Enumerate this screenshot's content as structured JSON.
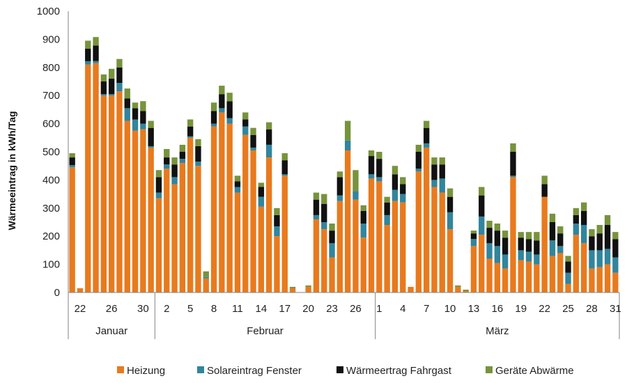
{
  "chart_data": {
    "type": "bar",
    "stacked": true,
    "title": "",
    "xlabel": "",
    "ylabel": "Wärmeeintrag in kWh/Tag",
    "ylim": [
      0,
      1000
    ],
    "yticks": [
      0,
      100,
      200,
      300,
      400,
      500,
      600,
      700,
      800,
      900,
      1000
    ],
    "grid": false,
    "legend_position": "bottom",
    "x_tick_labels": [
      {
        "index": 1,
        "label": "22"
      },
      {
        "index": 5,
        "label": "26"
      },
      {
        "index": 9,
        "label": "30"
      },
      {
        "index": 12,
        "label": "2"
      },
      {
        "index": 15,
        "label": "5"
      },
      {
        "index": 18,
        "label": "8"
      },
      {
        "index": 21,
        "label": "11"
      },
      {
        "index": 24,
        "label": "14"
      },
      {
        "index": 27,
        "label": "17"
      },
      {
        "index": 30,
        "label": "20"
      },
      {
        "index": 33,
        "label": "23"
      },
      {
        "index": 36,
        "label": "26"
      },
      {
        "index": 39,
        "label": "1"
      },
      {
        "index": 42,
        "label": "4"
      },
      {
        "index": 45,
        "label": "7"
      },
      {
        "index": 48,
        "label": "10"
      },
      {
        "index": 51,
        "label": "13"
      },
      {
        "index": 54,
        "label": "16"
      },
      {
        "index": 57,
        "label": "19"
      },
      {
        "index": 60,
        "label": "22"
      },
      {
        "index": 63,
        "label": "25"
      },
      {
        "index": 66,
        "label": "28"
      },
      {
        "index": 69,
        "label": "31"
      }
    ],
    "months": [
      {
        "label": "Januar",
        "start": 0,
        "end": 11
      },
      {
        "label": "Februar",
        "start": 11,
        "end": 39
      },
      {
        "label": "März",
        "start": 39,
        "end": 70
      }
    ],
    "series": [
      {
        "name": "Heizung",
        "color": "#E87A1E",
        "values": [
          445,
          15,
          810,
          815,
          700,
          700,
          715,
          610,
          575,
          580,
          515,
          335,
          440,
          385,
          460,
          550,
          450,
          50,
          590,
          640,
          600,
          355,
          560,
          505,
          305,
          480,
          200,
          415,
          15,
          0,
          20,
          260,
          225,
          125,
          325,
          505,
          330,
          195,
          405,
          395,
          240,
          325,
          320,
          20,
          430,
          515,
          375,
          355,
          225,
          20,
          5,
          165,
          205,
          120,
          105,
          85,
          410,
          115,
          110,
          100,
          340,
          130,
          140,
          30,
          205,
          175,
          85,
          90,
          100,
          70
        ]
      },
      {
        "name": "Solareintrag Fenster",
        "color": "#31859C",
        "values": [
          8,
          0,
          12,
          8,
          5,
          5,
          30,
          45,
          40,
          20,
          5,
          20,
          15,
          25,
          15,
          5,
          15,
          5,
          10,
          15,
          20,
          20,
          30,
          10,
          35,
          45,
          35,
          5,
          0,
          0,
          0,
          15,
          25,
          50,
          20,
          35,
          30,
          50,
          15,
          15,
          35,
          40,
          30,
          0,
          10,
          15,
          25,
          50,
          60,
          0,
          0,
          25,
          65,
          55,
          60,
          50,
          5,
          35,
          35,
          35,
          0,
          55,
          25,
          40,
          40,
          65,
          65,
          60,
          55,
          55
        ]
      },
      {
        "name": "Wärmeertrag Fahrgast",
        "color": "#111111",
        "values": [
          27,
          0,
          45,
          55,
          45,
          55,
          55,
          35,
          40,
          45,
          65,
          55,
          25,
          45,
          25,
          35,
          55,
          0,
          45,
          50,
          60,
          20,
          25,
          45,
          35,
          55,
          40,
          50,
          0,
          0,
          0,
          55,
          65,
          45,
          65,
          0,
          0,
          45,
          65,
          65,
          45,
          55,
          35,
          0,
          60,
          55,
          55,
          50,
          55,
          0,
          0,
          20,
          75,
          55,
          55,
          60,
          85,
          45,
          45,
          50,
          45,
          65,
          45,
          40,
          30,
          50,
          50,
          60,
          85,
          65
        ]
      },
      {
        "name": "Geräte Abwärme",
        "color": "#77933C",
        "values": [
          15,
          0,
          28,
          30,
          25,
          35,
          30,
          35,
          20,
          35,
          25,
          25,
          30,
          25,
          25,
          25,
          25,
          20,
          30,
          30,
          30,
          20,
          25,
          25,
          15,
          25,
          25,
          25,
          5,
          0,
          5,
          25,
          35,
          25,
          20,
          70,
          75,
          20,
          20,
          25,
          20,
          30,
          25,
          0,
          25,
          25,
          25,
          25,
          30,
          5,
          5,
          10,
          30,
          25,
          25,
          25,
          30,
          20,
          25,
          30,
          30,
          30,
          25,
          20,
          25,
          30,
          25,
          30,
          35,
          25
        ]
      }
    ]
  }
}
